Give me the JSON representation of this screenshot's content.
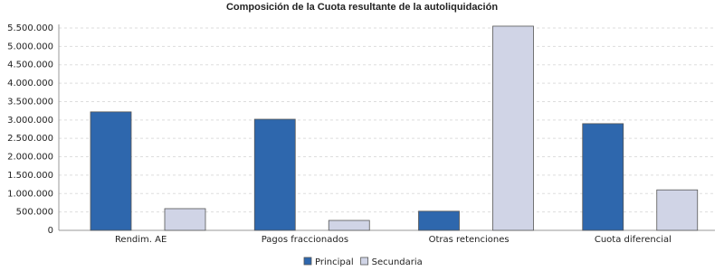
{
  "chart_data": {
    "type": "bar",
    "title": "Composición de la Cuota resultante de la autoliquidación",
    "categories": [
      "Rendim. AE",
      "Pagos fraccionados",
      "Otras retenciones",
      "Cuota diferencial"
    ],
    "series": [
      {
        "name": "Principal",
        "color": "#2e67ad",
        "values": [
          3220000,
          3020000,
          520000,
          2900000
        ]
      },
      {
        "name": "Secundaria",
        "color": "#d0d4e6",
        "values": [
          590000,
          270000,
          5550000,
          1100000
        ]
      }
    ],
    "ylim": [
      0,
      5500000
    ],
    "yticks": [
      0,
      {
        "value": 500000,
        "label": "500.000"
      },
      {
        "value": 1000000,
        "label": "1.000.000"
      },
      {
        "value": 1500000,
        "label": "1.500.000"
      },
      {
        "value": 2000000,
        "label": "2.000.000"
      },
      {
        "value": 2500000,
        "label": "2.500.000"
      },
      {
        "value": 3000000,
        "label": "3.000.000"
      },
      {
        "value": 3500000,
        "label": "3.500.000"
      },
      {
        "value": 4000000,
        "label": "4.000.000"
      },
      {
        "value": 4500000,
        "label": "4.500.000"
      },
      {
        "value": 5000000,
        "label": "5.000.000"
      },
      {
        "value": 5500000,
        "label": "5.500.000"
      }
    ],
    "grid": true
  }
}
